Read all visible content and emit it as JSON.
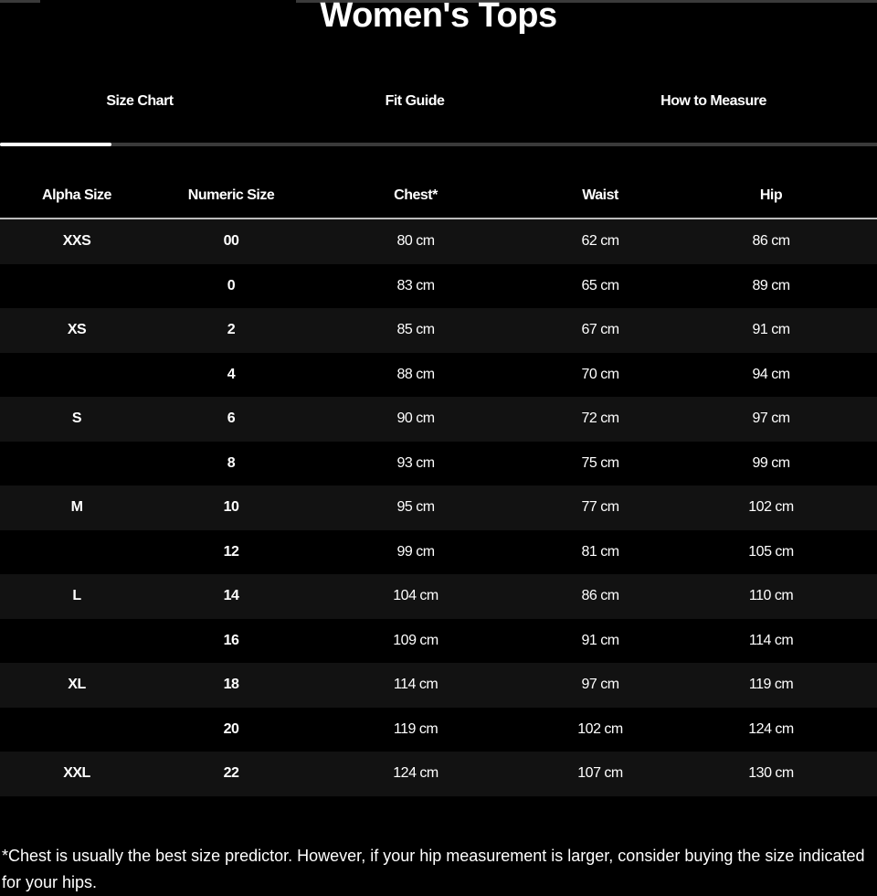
{
  "title": "Women's Tops",
  "tabs": [
    {
      "label": "Size Chart",
      "active": true
    },
    {
      "label": "Fit Guide",
      "active": false
    },
    {
      "label": "How to Measure",
      "active": false
    }
  ],
  "table": {
    "headers": [
      "Alpha Size",
      "Numeric Size",
      "Chest*",
      "Waist",
      "Hip"
    ],
    "rows": [
      [
        "XXS",
        "00",
        "80 cm",
        "62 cm",
        "86 cm"
      ],
      [
        "",
        "0",
        "83 cm",
        "65 cm",
        "89 cm"
      ],
      [
        "XS",
        "2",
        "85 cm",
        "67 cm",
        "91 cm"
      ],
      [
        "",
        "4",
        "88 cm",
        "70 cm",
        "94 cm"
      ],
      [
        "S",
        "6",
        "90 cm",
        "72 cm",
        "97 cm"
      ],
      [
        "",
        "8",
        "93 cm",
        "75 cm",
        "99 cm"
      ],
      [
        "M",
        "10",
        "95 cm",
        "77 cm",
        "102 cm"
      ],
      [
        "",
        "12",
        "99 cm",
        "81 cm",
        "105 cm"
      ],
      [
        "L",
        "14",
        "104 cm",
        "86 cm",
        "110 cm"
      ],
      [
        "",
        "16",
        "109 cm",
        "91 cm",
        "114 cm"
      ],
      [
        "XL",
        "18",
        "114 cm",
        "97 cm",
        "119 cm"
      ],
      [
        "",
        "20",
        "119 cm",
        "102 cm",
        "124 cm"
      ],
      [
        "XXL",
        "22",
        "124 cm",
        "107 cm",
        "130 cm"
      ]
    ]
  },
  "footnote": "*Chest is usually the best size predictor. However, if your hip measurement is larger, consider buying the size indicated for your hips."
}
